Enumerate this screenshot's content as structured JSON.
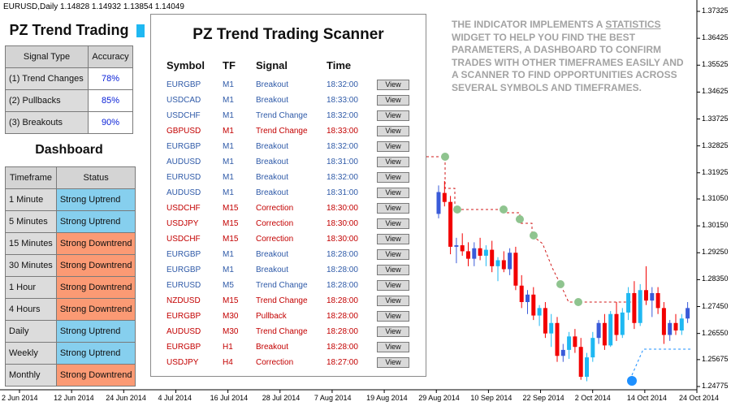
{
  "header": {
    "symbol_line": "EURUSD,Daily  1.14828 1.14932 1.13854 1.14049"
  },
  "statistics": {
    "title": "PZ Trend Trading",
    "columns": [
      "Signal Type",
      "Accuracy"
    ],
    "rows": [
      {
        "label": "(1) Trend Changes",
        "value": "78%"
      },
      {
        "label": "(2) Pullbacks",
        "value": "85%"
      },
      {
        "label": "(3) Breakouts",
        "value": "90%"
      }
    ]
  },
  "dashboard": {
    "title": "Dashboard",
    "columns": [
      "Timeframe",
      "Status"
    ],
    "rows": [
      {
        "timeframe": "1 Minute",
        "status": "Strong Uptrend",
        "trend": "up"
      },
      {
        "timeframe": "5 Minutes",
        "status": "Strong Uptrend",
        "trend": "up"
      },
      {
        "timeframe": "15 Minutes",
        "status": "Strong Downtrend",
        "trend": "down"
      },
      {
        "timeframe": "30 Minutes",
        "status": "Strong Downtrend",
        "trend": "down"
      },
      {
        "timeframe": "1 Hour",
        "status": "Strong Downtrend",
        "trend": "down"
      },
      {
        "timeframe": "4 Hours",
        "status": "Strong Downtrend",
        "trend": "down"
      },
      {
        "timeframe": "Daily",
        "status": "Strong Uptrend",
        "trend": "up"
      },
      {
        "timeframe": "Weekly",
        "status": "Strong Uptrend",
        "trend": "up"
      },
      {
        "timeframe": "Monthly",
        "status": "Strong Downtrend",
        "trend": "down"
      }
    ]
  },
  "scanner": {
    "title": "PZ Trend Trading Scanner",
    "columns": {
      "symbol": "Symbol",
      "tf": "TF",
      "signal": "Signal",
      "time": "Time"
    },
    "view_label": "View",
    "rows": [
      {
        "symbol": "EURGBP",
        "tf": "M1",
        "signal": "Breakout",
        "time": "18:32:00",
        "color": "blue"
      },
      {
        "symbol": "USDCAD",
        "tf": "M1",
        "signal": "Breakout",
        "time": "18:33:00",
        "color": "blue"
      },
      {
        "symbol": "USDCHF",
        "tf": "M1",
        "signal": "Trend Change",
        "time": "18:32:00",
        "color": "blue"
      },
      {
        "symbol": "GBPUSD",
        "tf": "M1",
        "signal": "Trend Change",
        "time": "18:33:00",
        "color": "red"
      },
      {
        "symbol": "EURGBP",
        "tf": "M1",
        "signal": "Breakout",
        "time": "18:32:00",
        "color": "blue"
      },
      {
        "symbol": "AUDUSD",
        "tf": "M1",
        "signal": "Breakout",
        "time": "18:31:00",
        "color": "blue"
      },
      {
        "symbol": "EURUSD",
        "tf": "M1",
        "signal": "Breakout",
        "time": "18:32:00",
        "color": "blue"
      },
      {
        "symbol": "AUDUSD",
        "tf": "M1",
        "signal": "Breakout",
        "time": "18:31:00",
        "color": "blue"
      },
      {
        "symbol": "USDCHF",
        "tf": "M15",
        "signal": "Correction",
        "time": "18:30:00",
        "color": "red"
      },
      {
        "symbol": "USDJPY",
        "tf": "M15",
        "signal": "Correction",
        "time": "18:30:00",
        "color": "red"
      },
      {
        "symbol": "USDCHF",
        "tf": "M15",
        "signal": "Correction",
        "time": "18:30:00",
        "color": "red"
      },
      {
        "symbol": "EURGBP",
        "tf": "M1",
        "signal": "Breakout",
        "time": "18:28:00",
        "color": "blue"
      },
      {
        "symbol": "EURGBP",
        "tf": "M1",
        "signal": "Breakout",
        "time": "18:28:00",
        "color": "blue"
      },
      {
        "symbol": "EURUSD",
        "tf": "M5",
        "signal": "Trend Change",
        "time": "18:28:00",
        "color": "blue"
      },
      {
        "symbol": "NZDUSD",
        "tf": "M15",
        "signal": "Trend Change",
        "time": "18:28:00",
        "color": "red"
      },
      {
        "symbol": "EURGBP",
        "tf": "M30",
        "signal": "Pullback",
        "time": "18:28:00",
        "color": "red"
      },
      {
        "symbol": "AUDUSD",
        "tf": "M30",
        "signal": "Trend Change",
        "time": "18:28:00",
        "color": "red"
      },
      {
        "symbol": "EURGBP",
        "tf": "H1",
        "signal": "Breakout",
        "time": "18:28:00",
        "color": "red"
      },
      {
        "symbol": "USDJPY",
        "tf": "H4",
        "signal": "Correction",
        "time": "18:27:00",
        "color": "red"
      }
    ]
  },
  "description": {
    "before": "THE INDICATOR IMPLEMENTS A ",
    "underlined": "STATISTICS",
    "after": " WIDGET TO HELP YOU FIND THE BEST PARAMETERS, A DASHBOARD TO CONFIRM TRADES WITH OTHER TIMEFRAMES EASILY AND A SCANNER TO FIND OPPORTUNITIES ACROSS SEVERAL SYMBOLS AND TIMEFRAMES."
  },
  "chart_data": {
    "type": "candlestick",
    "y_ticks": [
      "1.37325",
      "1.36425",
      "1.35525",
      "1.34625",
      "1.33725",
      "1.32825",
      "1.31925",
      "1.31050",
      "1.30150",
      "1.29250",
      "1.28350",
      "1.27450",
      "1.26550",
      "1.25675",
      "1.24775"
    ],
    "y_range": [
      1.24775,
      1.37325
    ],
    "x_ticks": [
      "2 Jun 2014",
      "12 Jun 2014",
      "24 Jun 2014",
      "4 Jul 2014",
      "16 Jul 2014",
      "28 Jul 2014",
      "7 Aug 2014",
      "19 Aug 2014",
      "29 Aug 2014",
      "10 Sep 2014",
      "22 Sep 2014",
      "2 Oct 2014",
      "14 Oct 2014",
      "24 Oct 2014"
    ],
    "colors": {
      "bull": "#1fb8f2",
      "bull_strong": "#3a5bd9",
      "bear": "#f20000",
      "bear_light": "#ffd7d7",
      "trail": "#d11a1a",
      "marker": "#8fc48f",
      "info": "#1e90ff"
    },
    "candles": [
      [
        1.3055,
        1.315,
        1.304,
        1.3128
      ],
      [
        1.3125,
        1.3165,
        1.308,
        1.3095
      ],
      [
        1.3095,
        1.3115,
        1.292,
        1.2945
      ],
      [
        1.2945,
        1.2975,
        1.289,
        1.295
      ],
      [
        1.295,
        1.299,
        1.2915,
        1.293
      ],
      [
        1.293,
        1.296,
        1.288,
        1.2905
      ],
      [
        1.2905,
        1.296,
        1.288,
        1.294
      ],
      [
        1.294,
        1.2975,
        1.29,
        1.2915
      ],
      [
        1.2915,
        1.295,
        1.288,
        1.2935
      ],
      [
        1.2935,
        1.2965,
        1.286,
        1.288
      ],
      [
        1.288,
        1.291,
        1.283,
        1.29
      ],
      [
        1.29,
        1.293,
        1.286,
        1.287
      ],
      [
        1.287,
        1.294,
        1.285,
        1.2925
      ],
      [
        1.2925,
        1.2945,
        1.28,
        1.2815
      ],
      [
        1.2815,
        1.285,
        1.274,
        1.276
      ],
      [
        1.276,
        1.28,
        1.272,
        1.2785
      ],
      [
        1.2785,
        1.281,
        1.27,
        1.2715
      ],
      [
        1.2715,
        1.275,
        1.268,
        1.274
      ],
      [
        1.274,
        1.276,
        1.264,
        1.2655
      ],
      [
        1.2655,
        1.272,
        1.261,
        1.269
      ],
      [
        1.269,
        1.271,
        1.256,
        1.258
      ],
      [
        1.258,
        1.262,
        1.256,
        1.26
      ],
      [
        1.26,
        1.266,
        1.257,
        1.2645
      ],
      [
        1.2645,
        1.267,
        1.259,
        1.261
      ],
      [
        1.261,
        1.264,
        1.25,
        1.251
      ],
      [
        1.251,
        1.259,
        1.2495,
        1.2575
      ],
      [
        1.2575,
        1.266,
        1.256,
        1.264
      ],
      [
        1.264,
        1.27,
        1.262,
        1.269
      ],
      [
        1.269,
        1.272,
        1.26,
        1.2615
      ],
      [
        1.2615,
        1.273,
        1.261,
        1.272
      ],
      [
        1.272,
        1.276,
        1.263,
        1.265
      ],
      [
        1.265,
        1.274,
        1.264,
        1.2725
      ],
      [
        1.2725,
        1.281,
        1.27,
        1.279
      ],
      [
        1.279,
        1.283,
        1.267,
        1.269
      ],
      [
        1.269,
        1.282,
        1.268,
        1.28
      ],
      [
        1.28,
        1.288,
        1.275,
        1.2765
      ],
      [
        1.2765,
        1.281,
        1.271,
        1.279
      ],
      [
        1.279,
        1.281,
        1.272,
        1.274
      ],
      [
        1.274,
        1.276,
        1.262,
        1.265
      ],
      [
        1.265,
        1.27,
        1.263,
        1.269
      ],
      [
        1.269,
        1.272,
        1.265,
        1.2665
      ],
      [
        1.2665,
        1.272,
        1.265,
        1.2705
      ],
      [
        1.2705,
        1.276,
        1.269,
        1.274
      ]
    ]
  }
}
